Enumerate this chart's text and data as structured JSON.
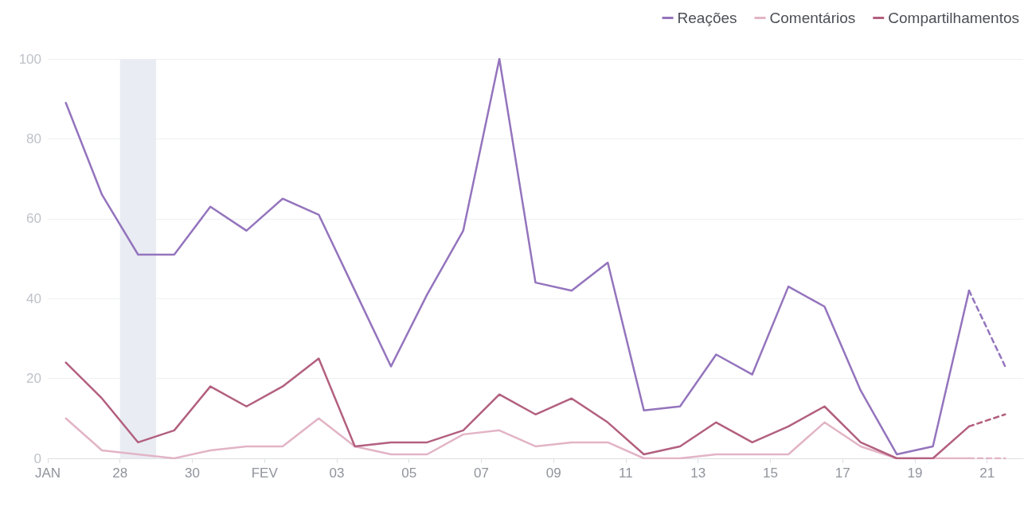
{
  "chart_data": {
    "type": "line",
    "x": [
      "--01-26T12:00",
      "--01-27T12:00",
      "--01-28T12:00",
      "--01-29T12:00",
      "--01-30T12:00",
      "--01-31T12:00",
      "--02-01T12:00",
      "--02-02T12:00",
      "--02-03T12:00",
      "--02-04T12:00",
      "--02-05T12:00",
      "--02-06T12:00",
      "--02-07T12:00",
      "--02-08T12:00",
      "--02-09T12:00",
      "--02-10T12:00",
      "--02-11T12:00",
      "--02-12T12:00",
      "--02-13T12:00",
      "--02-14T12:00",
      "--02-15T12:00",
      "--02-16T12:00",
      "--02-17T12:00",
      "--02-18T12:00",
      "--02-19T12:00",
      "--02-20T12:00"
    ],
    "xlim": [
      "--01-26",
      "--02-22"
    ],
    "xticks": [
      {
        "value": "--01-26",
        "label": "JAN"
      },
      {
        "value": "--01-28",
        "label": "28"
      },
      {
        "value": "--01-30",
        "label": "30"
      },
      {
        "value": "--02-01",
        "label": "FEV"
      },
      {
        "value": "--02-03",
        "label": "03"
      },
      {
        "value": "--02-05",
        "label": "05"
      },
      {
        "value": "--02-07",
        "label": "07"
      },
      {
        "value": "--02-09",
        "label": "09"
      },
      {
        "value": "--02-11",
        "label": "11"
      },
      {
        "value": "--02-13",
        "label": "13"
      },
      {
        "value": "--02-15",
        "label": "15"
      },
      {
        "value": "--02-17",
        "label": "17"
      },
      {
        "value": "--02-19",
        "label": "19"
      },
      {
        "value": "--02-21",
        "label": "21"
      }
    ],
    "ylim": [
      0,
      100
    ],
    "yticks": [
      0,
      20,
      40,
      60,
      80,
      100
    ],
    "grid": "y",
    "legend": "top right",
    "marker": "none",
    "line_style": "solid",
    "bands": [
      {
        "axis": "x",
        "from": "--01-28",
        "to": "--01-29",
        "color": "#e9edf3"
      }
    ],
    "series": [
      {
        "name": "Reações",
        "color": "#9474bd",
        "values": [
          89,
          66,
          51,
          51,
          63,
          57,
          65,
          61,
          42,
          23,
          41,
          57,
          100,
          44,
          42,
          49,
          12,
          13,
          26,
          21,
          43,
          38,
          17,
          1,
          3,
          42
        ]
      },
      {
        "name": "Comentários",
        "color": "#e2b4c6",
        "values": [
          10,
          2,
          1,
          0,
          2,
          3,
          3,
          10,
          3,
          1,
          1,
          6,
          7,
          3,
          4,
          4,
          0,
          0,
          1,
          1,
          1,
          9,
          3,
          0,
          0,
          0
        ]
      },
      {
        "name": "Compartilhamentos",
        "color": "#b3607f",
        "values": [
          24,
          15,
          4,
          7,
          18,
          13,
          18,
          25,
          3,
          4,
          4,
          7,
          16,
          11,
          15,
          9,
          1,
          3,
          9,
          4,
          8,
          13,
          4,
          0,
          0,
          8
        ]
      },
      {
        "color": "#9474bd",
        "x": [
          "--02-20T12:00",
          "--02-21T12:00"
        ],
        "values": [
          42,
          23
        ],
        "line_style": "dashed"
      },
      {
        "color": "#e2b4c6",
        "x": [
          "--02-20T12:00",
          "--02-21T12:00"
        ],
        "values": [
          0,
          0
        ],
        "line_style": "dashed"
      },
      {
        "color": "#b3607f",
        "x": [
          "--02-20T12:00",
          "--02-21T12:00"
        ],
        "values": [
          8,
          11
        ],
        "line_style": "dashed"
      }
    ]
  }
}
